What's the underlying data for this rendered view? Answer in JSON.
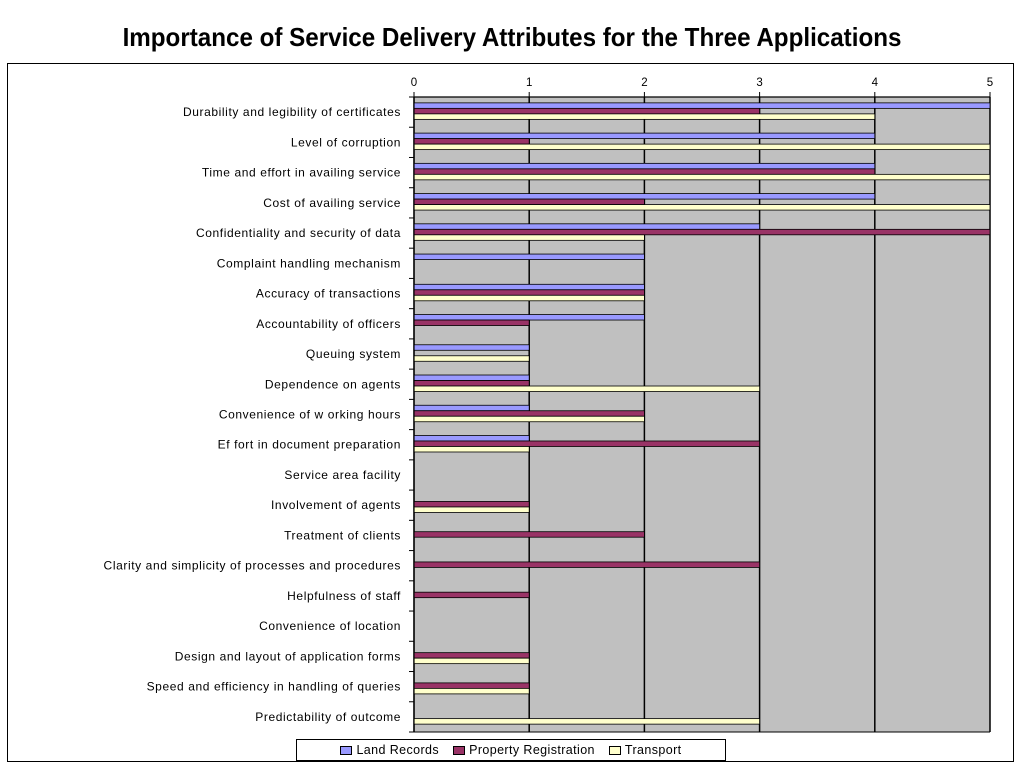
{
  "title": "Importance of Service Delivery Attributes for the Three Applications",
  "chart_data": {
    "type": "bar",
    "orientation": "horizontal",
    "title": "Importance of Service Delivery Attributes for the Three Applications",
    "xlim": [
      0,
      5
    ],
    "xticks": [
      "0",
      "1",
      "2",
      "3",
      "4",
      "5"
    ],
    "categories": [
      "Durability and legibility of certificates",
      "Level of corruption",
      "Time and effort in availing service",
      "Cost of availing service",
      "Confidentiality and security of data",
      "Complaint handling mechanism",
      "Accuracy of transactions",
      "Accountability of officers",
      "Queuing system",
      "Dependence on agents",
      "Convenience of w orking hours",
      "Ef fort in document preparation",
      "Service area facility",
      "Involvement of agents",
      "Treatment of clients",
      "Clarity and simplicity of processes and procedures",
      "Helpfulness of staff",
      "Convenience of location",
      "Design and layout of application forms",
      "Speed and efficiency in handling of queries",
      "Predictability of outcome"
    ],
    "series": [
      {
        "name": "Land Records",
        "color": "#9999ff",
        "values": [
          5,
          4,
          4,
          4,
          3,
          2,
          2,
          2,
          1,
          1,
          1,
          1,
          0,
          0,
          0,
          0,
          0,
          0,
          0,
          0,
          0
        ]
      },
      {
        "name": "Property Registration",
        "color": "#993366",
        "values": [
          3,
          1,
          4,
          2,
          5,
          0,
          2,
          1,
          0,
          1,
          2,
          3,
          0,
          1,
          2,
          3,
          1,
          0,
          1,
          1,
          0
        ]
      },
      {
        "name": "Transport",
        "color": "#ffffcc",
        "values": [
          4,
          5,
          5,
          5,
          2,
          0,
          2,
          0,
          1,
          3,
          2,
          1,
          0,
          1,
          0,
          0,
          0,
          0,
          1,
          1,
          3
        ]
      }
    ],
    "grid": true,
    "plot_background": "#c0c0c0",
    "legend_position": "bottom"
  }
}
